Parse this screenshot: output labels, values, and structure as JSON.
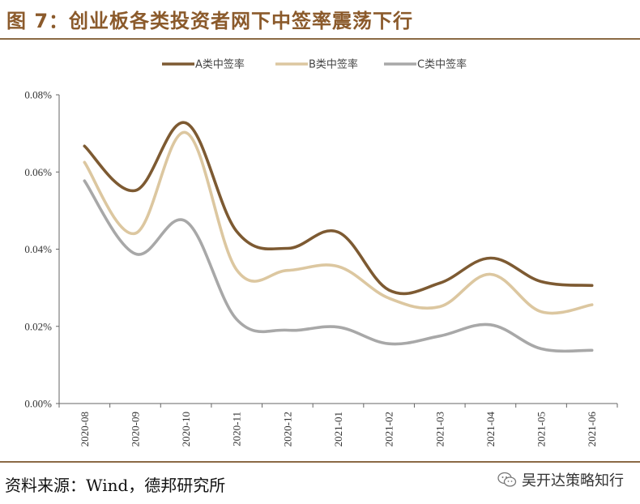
{
  "figure": {
    "title": "图 7：创业板各类投资者网下中签率震荡下行",
    "source": "资料来源：Wind，德邦研究所",
    "watermark": "吴开达策略知行"
  },
  "colors": {
    "accent": "#8b5a2b",
    "rule": "#8b6a45",
    "series_a": "#7d5a32",
    "series_b": "#dcc7a0",
    "series_c": "#a8a8a8"
  },
  "chart_data": {
    "type": "line",
    "title": "",
    "xlabel": "",
    "ylabel": "",
    "x": [
      "2020-08",
      "2020-09",
      "2020-10",
      "2020-11",
      "2020-12",
      "2021-01",
      "2021-02",
      "2021-03",
      "2021-04",
      "2021-05",
      "2021-06"
    ],
    "ylim": [
      0,
      0.08
    ],
    "yticks": [
      0,
      0.02,
      0.04,
      0.06,
      0.08
    ],
    "ytick_labels": [
      "0.00%",
      "0.02%",
      "0.04%",
      "0.06%",
      "0.08%"
    ],
    "y_unit": "%",
    "grid": false,
    "legend": "top",
    "series": [
      {
        "name": "A类中签率",
        "color": "#7d5a32",
        "values": [
          0.0667,
          0.0552,
          0.0727,
          0.0446,
          0.0402,
          0.0444,
          0.0294,
          0.0312,
          0.0377,
          0.0316,
          0.0306
        ]
      },
      {
        "name": "B类中签率",
        "color": "#dcc7a0",
        "values": [
          0.0625,
          0.0441,
          0.0702,
          0.0346,
          0.0345,
          0.0355,
          0.0273,
          0.0251,
          0.0335,
          0.0238,
          0.0256
        ]
      },
      {
        "name": "C类中签率",
        "color": "#a8a8a8",
        "values": [
          0.0577,
          0.0388,
          0.0472,
          0.0218,
          0.019,
          0.0198,
          0.0155,
          0.0175,
          0.0204,
          0.0142,
          0.0138
        ]
      }
    ]
  }
}
